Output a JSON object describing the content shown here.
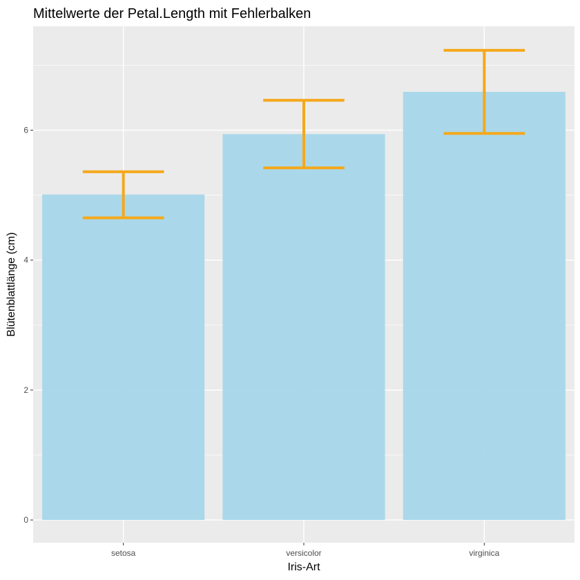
{
  "chart_data": {
    "type": "bar",
    "title": "Mittelwerte der Petal.Length mit Fehlerbalken",
    "xlabel": "Iris-Art",
    "ylabel": "Blütenblattlänge (cm)",
    "categories": [
      "setosa",
      "versicolor",
      "virginica"
    ],
    "values": [
      5.01,
      5.94,
      6.59
    ],
    "error_lower": [
      4.65,
      5.42,
      5.95
    ],
    "error_upper": [
      5.36,
      6.46,
      7.23
    ],
    "ylim": [
      -0.35,
      7.6
    ],
    "yticks": [
      0,
      2,
      4,
      6
    ],
    "ytick_labels": [
      "0",
      "2",
      "4",
      "6"
    ],
    "grid": true,
    "bar_color": "#a6d7ea",
    "errorbar_color": "#f5a81b",
    "panel_background": "#ebebeb",
    "gridline_color": "#ffffff"
  }
}
